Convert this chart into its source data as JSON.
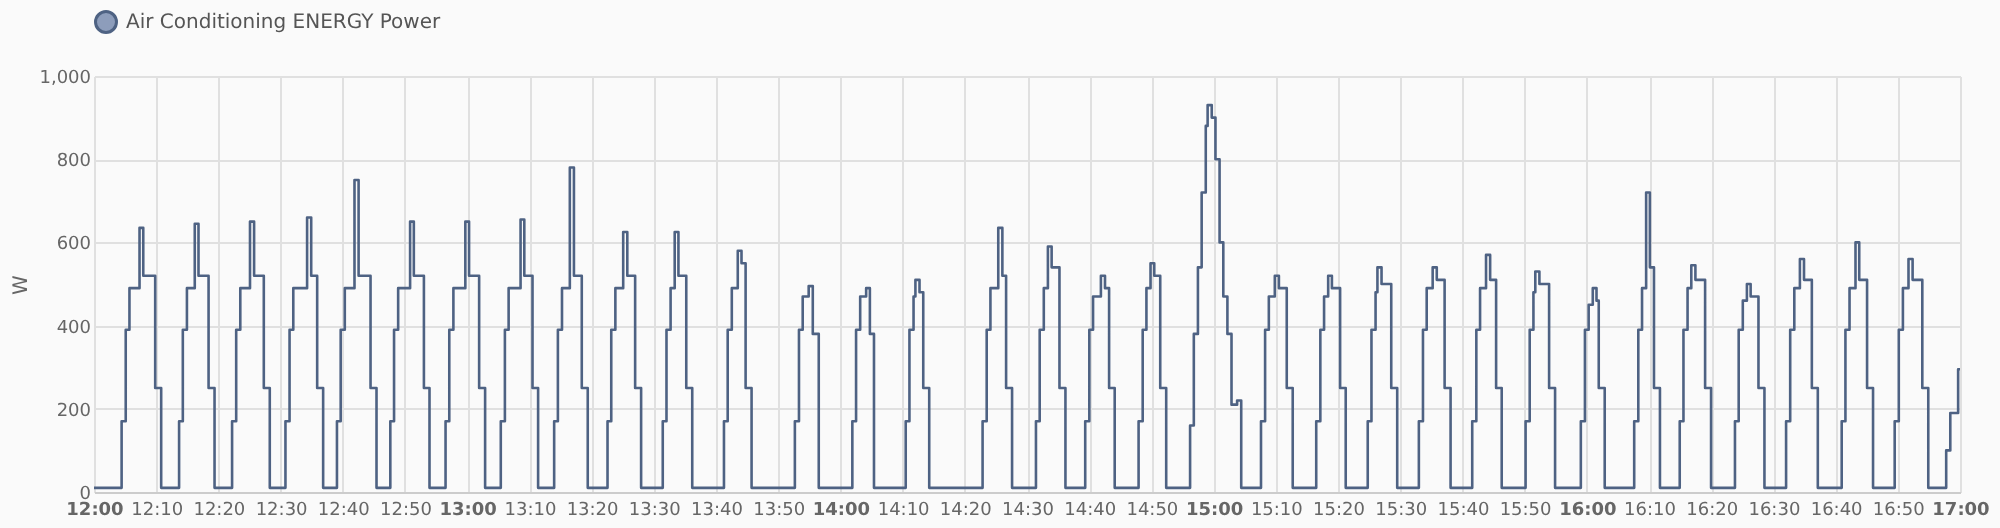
{
  "chart_data": {
    "type": "step",
    "ylabel": "W",
    "legend": "top",
    "grid": true,
    "xlim": [
      12,
      17
    ],
    "ylim": [
      0,
      1000
    ],
    "yticks": [
      0,
      200,
      400,
      600,
      800,
      {
        "value": 1000,
        "label": "1,000"
      }
    ],
    "xticks": [
      {
        "value": 12,
        "label": "12:00"
      },
      {
        "value": 12.1667,
        "label": "12:10"
      },
      {
        "value": 12.3333,
        "label": "12:20"
      },
      {
        "value": 12.5,
        "label": "12:30"
      },
      {
        "value": 12.6667,
        "label": "12:40"
      },
      {
        "value": 12.8333,
        "label": "12:50"
      },
      {
        "value": 13,
        "label": "13:00"
      },
      {
        "value": 13.1667,
        "label": "13:10"
      },
      {
        "value": 13.3333,
        "label": "13:20"
      },
      {
        "value": 13.5,
        "label": "13:30"
      },
      {
        "value": 13.6667,
        "label": "13:40"
      },
      {
        "value": 13.8333,
        "label": "13:50"
      },
      {
        "value": 14,
        "label": "14:00"
      },
      {
        "value": 14.1667,
        "label": "14:10"
      },
      {
        "value": 14.3333,
        "label": "14:20"
      },
      {
        "value": 14.5,
        "label": "14:30"
      },
      {
        "value": 14.6667,
        "label": "14:40"
      },
      {
        "value": 14.8333,
        "label": "14:50"
      },
      {
        "value": 15,
        "label": "15:00"
      },
      {
        "value": 15.1667,
        "label": "15:10"
      },
      {
        "value": 15.3333,
        "label": "15:20"
      },
      {
        "value": 15.5,
        "label": "15:30"
      },
      {
        "value": 15.6667,
        "label": "15:40"
      },
      {
        "value": 15.8333,
        "label": "15:50"
      },
      {
        "value": 16,
        "label": "16:00"
      },
      {
        "value": 16.1667,
        "label": "16:10"
      },
      {
        "value": 16.3333,
        "label": "16:20"
      },
      {
        "value": 16.5,
        "label": "16:30"
      },
      {
        "value": 16.6667,
        "label": "16:40"
      },
      {
        "value": 16.8333,
        "label": "16:50"
      },
      {
        "value": 17,
        "label": "17:00"
      }
    ],
    "x": [
      12.0,
      12.074,
      12.085,
      12.095,
      12.122,
      12.132,
      12.164,
      12.18,
      12.228,
      12.238,
      12.249,
      12.27,
      12.28,
      12.307,
      12.323,
      12.37,
      12.381,
      12.392,
      12.418,
      12.429,
      12.455,
      12.471,
      12.513,
      12.524,
      12.534,
      12.571,
      12.582,
      12.598,
      12.614,
      12.651,
      12.661,
      12.672,
      12.698,
      12.709,
      12.741,
      12.757,
      12.794,
      12.804,
      12.815,
      12.847,
      12.857,
      12.884,
      12.899,
      12.942,
      12.952,
      12.963,
      12.995,
      13.005,
      13.032,
      13.048,
      13.09,
      13.101,
      13.111,
      13.143,
      13.153,
      13.175,
      13.19,
      13.233,
      13.243,
      13.254,
      13.275,
      13.286,
      13.307,
      13.323,
      13.376,
      13.386,
      13.397,
      13.418,
      13.429,
      13.45,
      13.466,
      13.524,
      13.534,
      13.545,
      13.556,
      13.566,
      13.587,
      13.603,
      13.688,
      13.698,
      13.709,
      13.725,
      13.735,
      13.746,
      13.762,
      13.878,
      13.889,
      13.899,
      13.915,
      13.926,
      13.942,
      14.032,
      14.042,
      14.053,
      14.069,
      14.079,
      14.09,
      14.175,
      14.185,
      14.196,
      14.201,
      14.212,
      14.222,
      14.238,
      14.381,
      14.392,
      14.402,
      14.423,
      14.434,
      14.444,
      14.46,
      14.524,
      14.534,
      14.545,
      14.556,
      14.566,
      14.587,
      14.603,
      14.656,
      14.667,
      14.677,
      14.698,
      14.709,
      14.72,
      14.735,
      14.799,
      14.81,
      14.82,
      14.831,
      14.841,
      14.857,
      14.873,
      14.937,
      14.947,
      14.958,
      14.968,
      14.979,
      14.984,
      14.995,
      15.005,
      15.016,
      15.026,
      15.037,
      15.048,
      15.063,
      15.074,
      15.127,
      15.138,
      15.148,
      15.164,
      15.175,
      15.196,
      15.212,
      15.275,
      15.286,
      15.296,
      15.307,
      15.317,
      15.339,
      15.354,
      15.413,
      15.423,
      15.434,
      15.439,
      15.45,
      15.476,
      15.492,
      15.55,
      15.561,
      15.571,
      15.587,
      15.598,
      15.619,
      15.635,
      15.693,
      15.704,
      15.714,
      15.73,
      15.741,
      15.757,
      15.772,
      15.836,
      15.847,
      15.857,
      15.862,
      15.873,
      15.899,
      15.915,
      15.984,
      15.995,
      16.005,
      16.016,
      16.026,
      16.032,
      16.048,
      16.127,
      16.138,
      16.148,
      16.159,
      16.169,
      16.18,
      16.196,
      16.249,
      16.259,
      16.27,
      16.28,
      16.291,
      16.317,
      16.333,
      16.397,
      16.407,
      16.418,
      16.429,
      16.439,
      16.46,
      16.476,
      16.534,
      16.545,
      16.556,
      16.571,
      16.582,
      16.603,
      16.619,
      16.683,
      16.693,
      16.704,
      16.72,
      16.73,
      16.751,
      16.767,
      16.825,
      16.836,
      16.847,
      16.862,
      16.873,
      16.899,
      16.915,
      16.963,
      16.974,
      16.995,
      17.0
    ],
    "series": [
      {
        "name": "Air Conditioning ENERGY Power",
        "color": "#4e6283",
        "values": [
          10,
          170,
          390,
          490,
          635,
          520,
          250,
          10,
          170,
          390,
          490,
          645,
          520,
          250,
          10,
          170,
          390,
          490,
          650,
          520,
          250,
          10,
          170,
          390,
          490,
          660,
          520,
          250,
          10,
          170,
          390,
          490,
          750,
          520,
          250,
          10,
          170,
          390,
          490,
          650,
          520,
          250,
          10,
          170,
          390,
          490,
          650,
          520,
          250,
          10,
          170,
          390,
          490,
          655,
          520,
          250,
          10,
          170,
          390,
          490,
          780,
          520,
          250,
          10,
          170,
          390,
          490,
          625,
          520,
          250,
          10,
          170,
          390,
          490,
          625,
          520,
          250,
          10,
          170,
          390,
          490,
          580,
          550,
          250,
          10,
          170,
          390,
          470,
          495,
          380,
          10,
          170,
          390,
          470,
          490,
          380,
          10,
          170,
          390,
          470,
          510,
          480,
          250,
          10,
          170,
          390,
          490,
          635,
          520,
          250,
          10,
          170,
          390,
          490,
          590,
          540,
          250,
          10,
          170,
          390,
          470,
          520,
          490,
          250,
          10,
          170,
          390,
          490,
          550,
          520,
          250,
          10,
          160,
          380,
          540,
          720,
          880,
          930,
          900,
          800,
          600,
          470,
          380,
          210,
          220,
          10,
          170,
          390,
          470,
          520,
          490,
          250,
          10,
          170,
          390,
          470,
          520,
          490,
          250,
          10,
          170,
          390,
          480,
          540,
          500,
          250,
          10,
          170,
          390,
          490,
          540,
          510,
          250,
          10,
          170,
          390,
          490,
          570,
          510,
          250,
          10,
          170,
          390,
          480,
          530,
          500,
          250,
          10,
          170,
          390,
          450,
          490,
          460,
          250,
          10,
          170,
          390,
          490,
          720,
          540,
          250,
          10,
          170,
          390,
          490,
          545,
          510,
          250,
          10,
          170,
          390,
          460,
          500,
          470,
          250,
          10,
          170,
          390,
          490,
          560,
          510,
          250,
          10,
          170,
          390,
          490,
          600,
          510,
          250,
          10,
          170,
          390,
          490,
          560,
          510,
          250,
          10,
          100,
          190,
          295,
          295
        ]
      }
    ]
  }
}
